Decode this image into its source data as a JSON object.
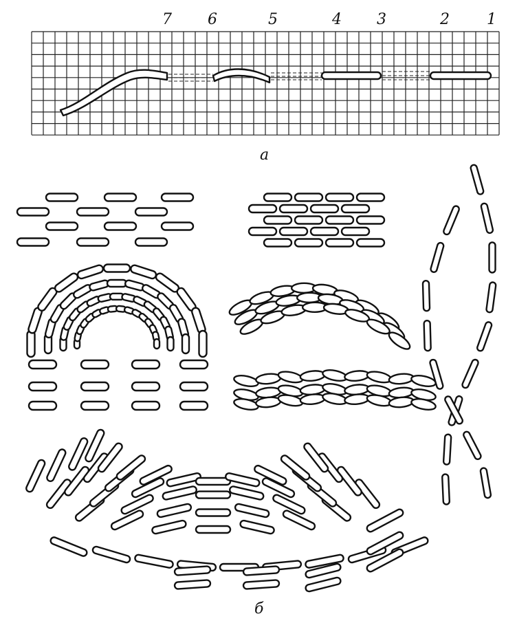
{
  "panel_a": {
    "caption": "а",
    "stitch_numbers": [
      "7",
      "6",
      "5",
      "4",
      "3",
      "2",
      "1"
    ]
  },
  "panel_b": {
    "caption": "б"
  }
}
